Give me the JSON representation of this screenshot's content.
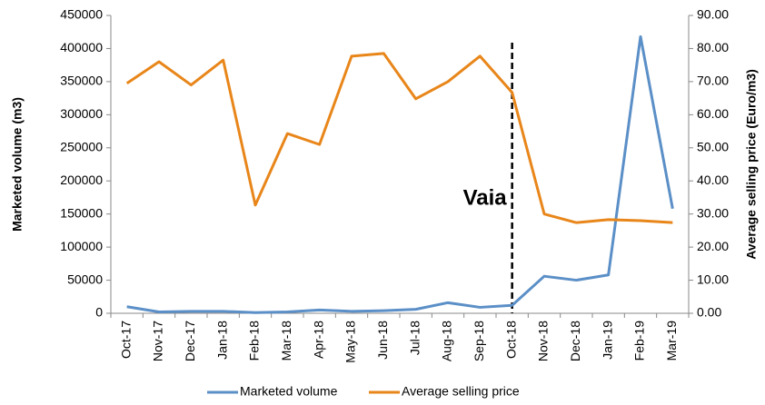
{
  "chart_data": {
    "type": "line",
    "categories": [
      "Oct-17",
      "Nov-17",
      "Dec-17",
      "Jan-18",
      "Feb-18",
      "Mar-18",
      "Apr-18",
      "May-18",
      "Jun-18",
      "Jul-18",
      "Aug-18",
      "Sep-18",
      "Oct-18",
      "Nov-18",
      "Dec-18",
      "Jan-19",
      "Feb-19",
      "Mar-19"
    ],
    "series": [
      {
        "name": "Marketed volume",
        "color": "#5b8fc7",
        "values": [
          10000,
          2000,
          3000,
          3000,
          1000,
          2000,
          5000,
          3000,
          4000,
          6000,
          16000,
          9000,
          12000,
          56000,
          50000,
          58000,
          418000,
          158000
        ]
      },
      {
        "name": "Average selling price",
        "color": "#e8861a",
        "axis": "y2",
        "values": [
          69.5,
          76,
          69,
          76.5,
          32.7,
          54.3,
          51,
          77.7,
          78.5,
          64.8,
          70,
          77.7,
          66.7,
          30,
          27.4,
          28.3,
          28,
          27.4
        ]
      }
    ],
    "ylabel": "Marketed volume (m3)",
    "y2label": "Average selling price (Euro/m3)",
    "ylim": [
      0,
      450000
    ],
    "yticks": [
      0,
      50000,
      100000,
      150000,
      200000,
      250000,
      300000,
      350000,
      400000,
      450000
    ],
    "y2lim": [
      0,
      90
    ],
    "y2ticks": [
      {
        "value": 0,
        "label": "0.00"
      },
      {
        "value": 10,
        "label": "10.00"
      },
      {
        "value": 20,
        "label": "20.00"
      },
      {
        "value": 30,
        "label": "30.00"
      },
      {
        "value": 40,
        "label": "40.00"
      },
      {
        "value": 50,
        "label": "50.00"
      },
      {
        "value": 60,
        "label": "60.00"
      },
      {
        "value": 70,
        "label": "70.00"
      },
      {
        "value": 80,
        "label": "80.00"
      },
      {
        "value": 90,
        "label": "90.00"
      }
    ],
    "annotations": [
      {
        "text": "Vaia",
        "x": "Oct-18"
      }
    ],
    "legend": "bottom",
    "grid": false
  }
}
